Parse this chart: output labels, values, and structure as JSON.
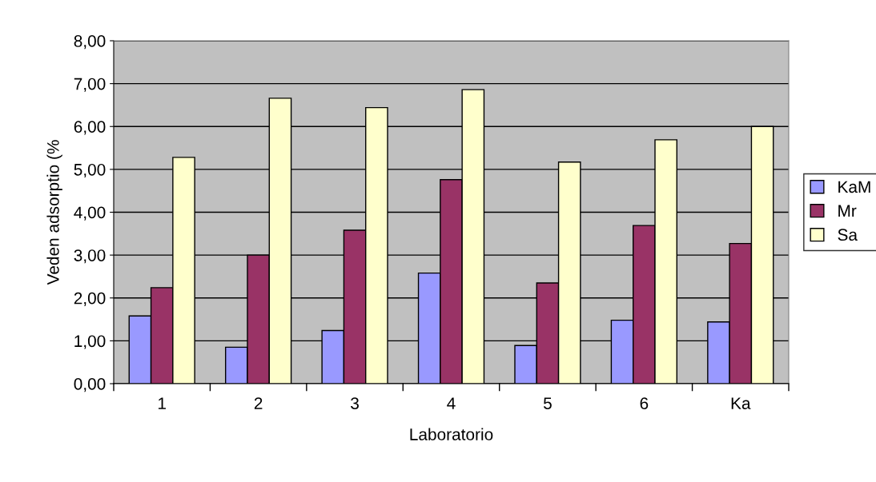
{
  "chart_data": {
    "type": "bar",
    "xlabel": "Laboratorio",
    "ylabel": "Veden adsorptio (%",
    "categories": [
      "1",
      "2",
      "3",
      "4",
      "5",
      "6",
      "Ka"
    ],
    "series": [
      {
        "name": "KaM",
        "color": "#9999ff",
        "values": [
          1.58,
          0.85,
          1.24,
          2.58,
          0.89,
          1.48,
          1.44
        ]
      },
      {
        "name": "Mr",
        "color": "#993366",
        "values": [
          2.24,
          3.0,
          3.58,
          4.76,
          2.35,
          3.69,
          3.27
        ]
      },
      {
        "name": "Sa",
        "color": "#ffffcc",
        "values": [
          5.28,
          6.66,
          6.44,
          6.86,
          5.17,
          5.69,
          6.0
        ]
      }
    ],
    "ylim": [
      0,
      8
    ],
    "yticks": [
      {
        "value": 0,
        "label": "0,00"
      },
      {
        "value": 1,
        "label": "1,00"
      },
      {
        "value": 2,
        "label": "2,00"
      },
      {
        "value": 3,
        "label": "3,00"
      },
      {
        "value": 4,
        "label": "4,00"
      },
      {
        "value": 5,
        "label": "5,00"
      },
      {
        "value": 6,
        "label": "6,00"
      },
      {
        "value": 7,
        "label": "7,00"
      },
      {
        "value": 8,
        "label": "8,00"
      }
    ],
    "grid": "y",
    "legend": "right"
  }
}
